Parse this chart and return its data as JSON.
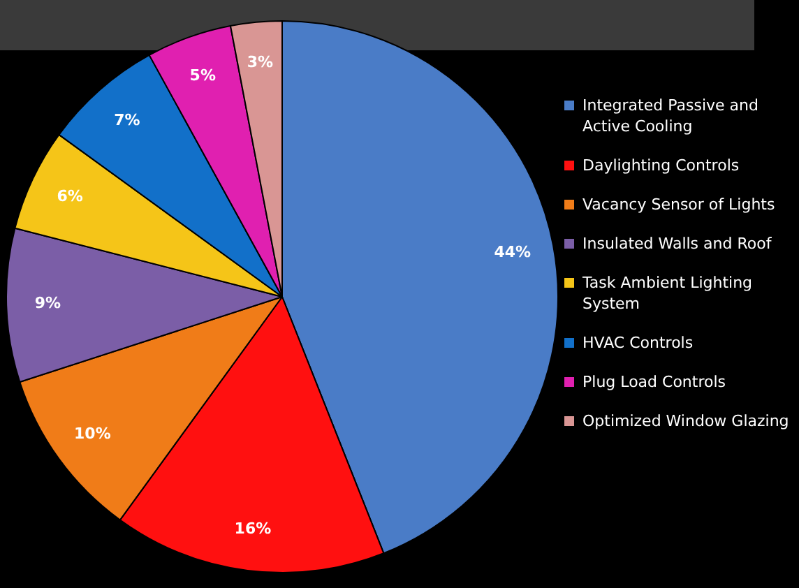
{
  "chart_data": {
    "type": "pie",
    "categories": [
      "Integrated Passive and Active Cooling",
      "Daylighting Controls",
      "Vacancy Sensor of Lights",
      "Insulated Walls and Roof",
      "Task Ambient Lighting System",
      "HVAC Controls",
      "Plug Load Controls",
      "Optimized Window Glazing"
    ],
    "values": [
      44,
      16,
      10,
      9,
      6,
      7,
      5,
      3
    ],
    "value_labels": [
      "44%",
      "16%",
      "10%",
      "9%",
      "6%",
      "7%",
      "5%",
      "3%"
    ],
    "colors": [
      "#4a7cc7",
      "#ff1010",
      "#f07c18",
      "#7b5ea7",
      "#f5c518",
      "#1270c9",
      "#e020b0",
      "#d99694"
    ],
    "legend": "right"
  }
}
